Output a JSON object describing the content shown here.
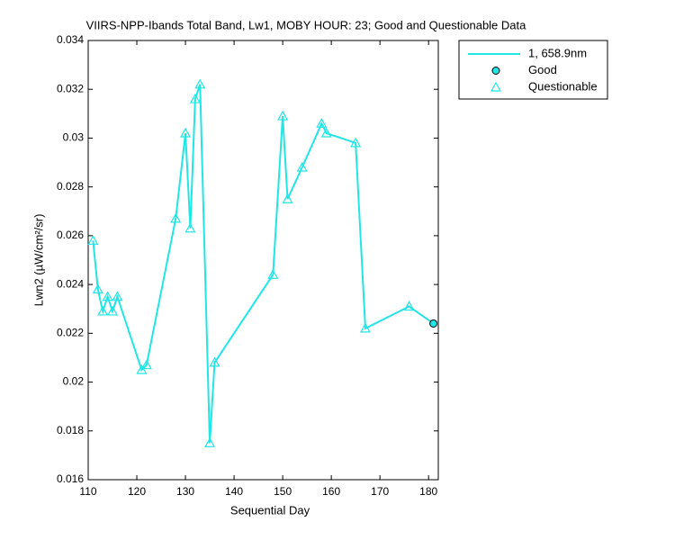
{
  "chart_data": {
    "type": "line",
    "title": "VIIRS-NPP-Ibands Total Band, Lw1, MOBY HOUR: 23;  Good and Questionable Data",
    "x_label": "Sequential Day",
    "y_label": "Lwn2 (µW/cm²/sr)",
    "xlim": [
      110,
      182
    ],
    "xticks": [
      110,
      120,
      130,
      140,
      150,
      160,
      170,
      180
    ],
    "ylim": [
      0.016,
      0.034
    ],
    "yticks": [
      0.016,
      0.018,
      0.02,
      0.022,
      0.024,
      0.026,
      0.028,
      0.03,
      0.032,
      0.034
    ],
    "legend": "outside-top-right",
    "series": [
      {
        "name": "1, 658.9nm",
        "color": "#22e5e5",
        "marker": "none",
        "x": [
          111,
          112,
          113,
          114,
          115,
          116,
          121,
          122,
          128,
          130,
          131,
          132,
          133,
          135,
          136,
          148,
          150,
          151,
          154,
          158,
          159,
          165,
          167,
          176,
          181
        ],
        "values": [
          0.0258,
          0.0238,
          0.0229,
          0.0235,
          0.0229,
          0.0235,
          0.0205,
          0.0207,
          0.0267,
          0.0302,
          0.0263,
          0.0316,
          0.0322,
          0.0175,
          0.0208,
          0.0244,
          0.0309,
          0.0275,
          0.0288,
          0.0306,
          0.0302,
          0.0298,
          0.0222,
          0.0231,
          0.0224
        ]
      },
      {
        "name": "Good",
        "color": "#22e5e5",
        "marker": "circle",
        "x": [
          181
        ],
        "values": [
          0.0224
        ]
      },
      {
        "name": "Questionable",
        "color": "#22e5e5",
        "marker": "triangle",
        "x": [
          111,
          112,
          113,
          114,
          115,
          116,
          121,
          122,
          128,
          130,
          131,
          132,
          133,
          135,
          136,
          148,
          150,
          151,
          154,
          158,
          159,
          165,
          167,
          176
        ],
        "values": [
          0.0258,
          0.0238,
          0.0229,
          0.0235,
          0.0229,
          0.0235,
          0.0205,
          0.0207,
          0.0267,
          0.0302,
          0.0263,
          0.0316,
          0.0322,
          0.0175,
          0.0208,
          0.0244,
          0.0309,
          0.0275,
          0.0288,
          0.0306,
          0.0302,
          0.0298,
          0.0222,
          0.0231
        ]
      }
    ]
  }
}
